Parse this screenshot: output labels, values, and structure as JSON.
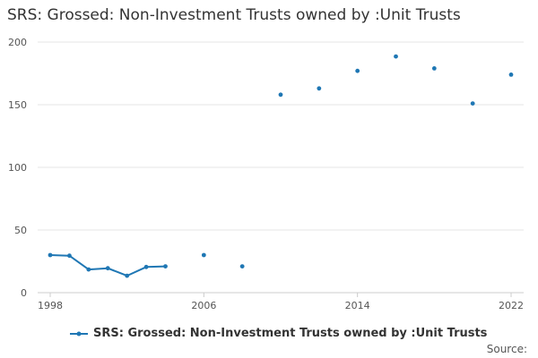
{
  "chart": {
    "title": "SRS: Grossed: Non-Investment Trusts owned by :Unit Trusts",
    "source_label": "Source:"
  },
  "colors": {
    "series": "#1f77b4",
    "grid": "#e6e6e6",
    "axis": "#cccccc",
    "text": "#555555"
  },
  "chart_data": {
    "type": "line",
    "title": "SRS: Grossed: Non-Investment Trusts owned by :Unit Trusts",
    "xlabel": "",
    "ylabel": "",
    "xlim": [
      1998,
      2022
    ],
    "ylim": [
      0,
      200
    ],
    "x_ticks": [
      1998,
      2006,
      2014,
      2022
    ],
    "y_ticks": [
      0,
      50,
      100,
      150,
      200
    ],
    "grid": true,
    "legend_position": "bottom",
    "series": [
      {
        "name": "SRS: Grossed: Non-Investment Trusts owned by :Unit Trusts",
        "x": [
          1998,
          1999,
          2000,
          2001,
          2002,
          2003,
          2004,
          2006,
          2008,
          2010,
          2012,
          2014,
          2016,
          2018,
          2020,
          2022
        ],
        "y": [
          30,
          29.5,
          18.5,
          19.5,
          13.5,
          20.5,
          21,
          30,
          21,
          158,
          163,
          177,
          188.5,
          179,
          151,
          174
        ]
      }
    ]
  }
}
